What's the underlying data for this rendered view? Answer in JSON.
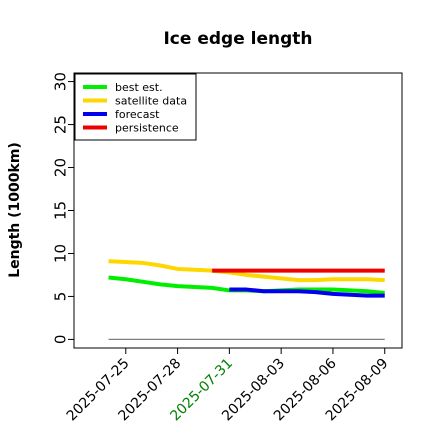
{
  "chart_data": {
    "type": "line",
    "title": "Ice edge length",
    "xlabel": "",
    "ylabel": "Length (1000km)",
    "ylim": [
      -1,
      31
    ],
    "xlim": [
      "2025-07-22",
      "2025-08-10"
    ],
    "yticks": [
      0,
      5,
      10,
      15,
      20,
      25,
      30
    ],
    "xticks": [
      {
        "label": "2025-07-25",
        "date": "2025-07-25",
        "color": "#000000"
      },
      {
        "label": "2025-07-28",
        "date": "2025-07-28",
        "color": "#000000"
      },
      {
        "label": "2025-07-31",
        "date": "2025-07-31",
        "color": "#008000"
      },
      {
        "label": "2025-08-03",
        "date": "2025-08-03",
        "color": "#000000"
      },
      {
        "label": "2025-08-06",
        "date": "2025-08-06",
        "color": "#000000"
      },
      {
        "label": "2025-08-09",
        "date": "2025-08-09",
        "color": "#000000"
      }
    ],
    "legend": {
      "placement": "top-left"
    },
    "series": [
      {
        "name": "best est.",
        "color": "#00ee00",
        "in_legend": true,
        "x": [
          "2025-07-24",
          "2025-07-25",
          "2025-07-26",
          "2025-07-27",
          "2025-07-28",
          "2025-07-29",
          "2025-07-30",
          "2025-07-31",
          "2025-08-01",
          "2025-08-02",
          "2025-08-03",
          "2025-08-04",
          "2025-08-05",
          "2025-08-06",
          "2025-08-07",
          "2025-08-08",
          "2025-08-09"
        ],
        "y": [
          7.2,
          7.0,
          6.7,
          6.4,
          6.2,
          6.1,
          6.0,
          5.7,
          5.7,
          5.6,
          5.7,
          5.8,
          5.8,
          5.8,
          5.7,
          5.6,
          5.4
        ]
      },
      {
        "name": "satellite data",
        "color": "#ffd700",
        "in_legend": true,
        "x": [
          "2025-07-24",
          "2025-07-25",
          "2025-07-26",
          "2025-07-27",
          "2025-07-28",
          "2025-07-29",
          "2025-07-30",
          "2025-07-31",
          "2025-08-01",
          "2025-08-02",
          "2025-08-03",
          "2025-08-04",
          "2025-08-05",
          "2025-08-06",
          "2025-08-07",
          "2025-08-08",
          "2025-08-09"
        ],
        "y": [
          9.1,
          9.0,
          8.9,
          8.6,
          8.2,
          8.1,
          8.0,
          7.8,
          7.5,
          7.3,
          7.1,
          6.9,
          6.9,
          7.0,
          7.0,
          7.0,
          6.9
        ]
      },
      {
        "name": "forecast",
        "color": "#0000ee",
        "in_legend": true,
        "x": [
          "2025-07-31",
          "2025-08-01",
          "2025-08-02",
          "2025-08-03",
          "2025-08-04",
          "2025-08-05",
          "2025-08-06",
          "2025-08-07",
          "2025-08-08",
          "2025-08-09"
        ],
        "y": [
          5.8,
          5.8,
          5.6,
          5.6,
          5.6,
          5.5,
          5.3,
          5.2,
          5.1,
          5.1
        ]
      },
      {
        "name": "persistence",
        "color": "#ee0000",
        "in_legend": true,
        "x": [
          "2025-07-30",
          "2025-08-09"
        ],
        "y": [
          8.0,
          8.0
        ]
      },
      {
        "name": "",
        "color": "#808080",
        "in_legend": false,
        "x": [
          "2025-07-24",
          "2025-08-09"
        ],
        "y": [
          0,
          0
        ]
      }
    ]
  }
}
